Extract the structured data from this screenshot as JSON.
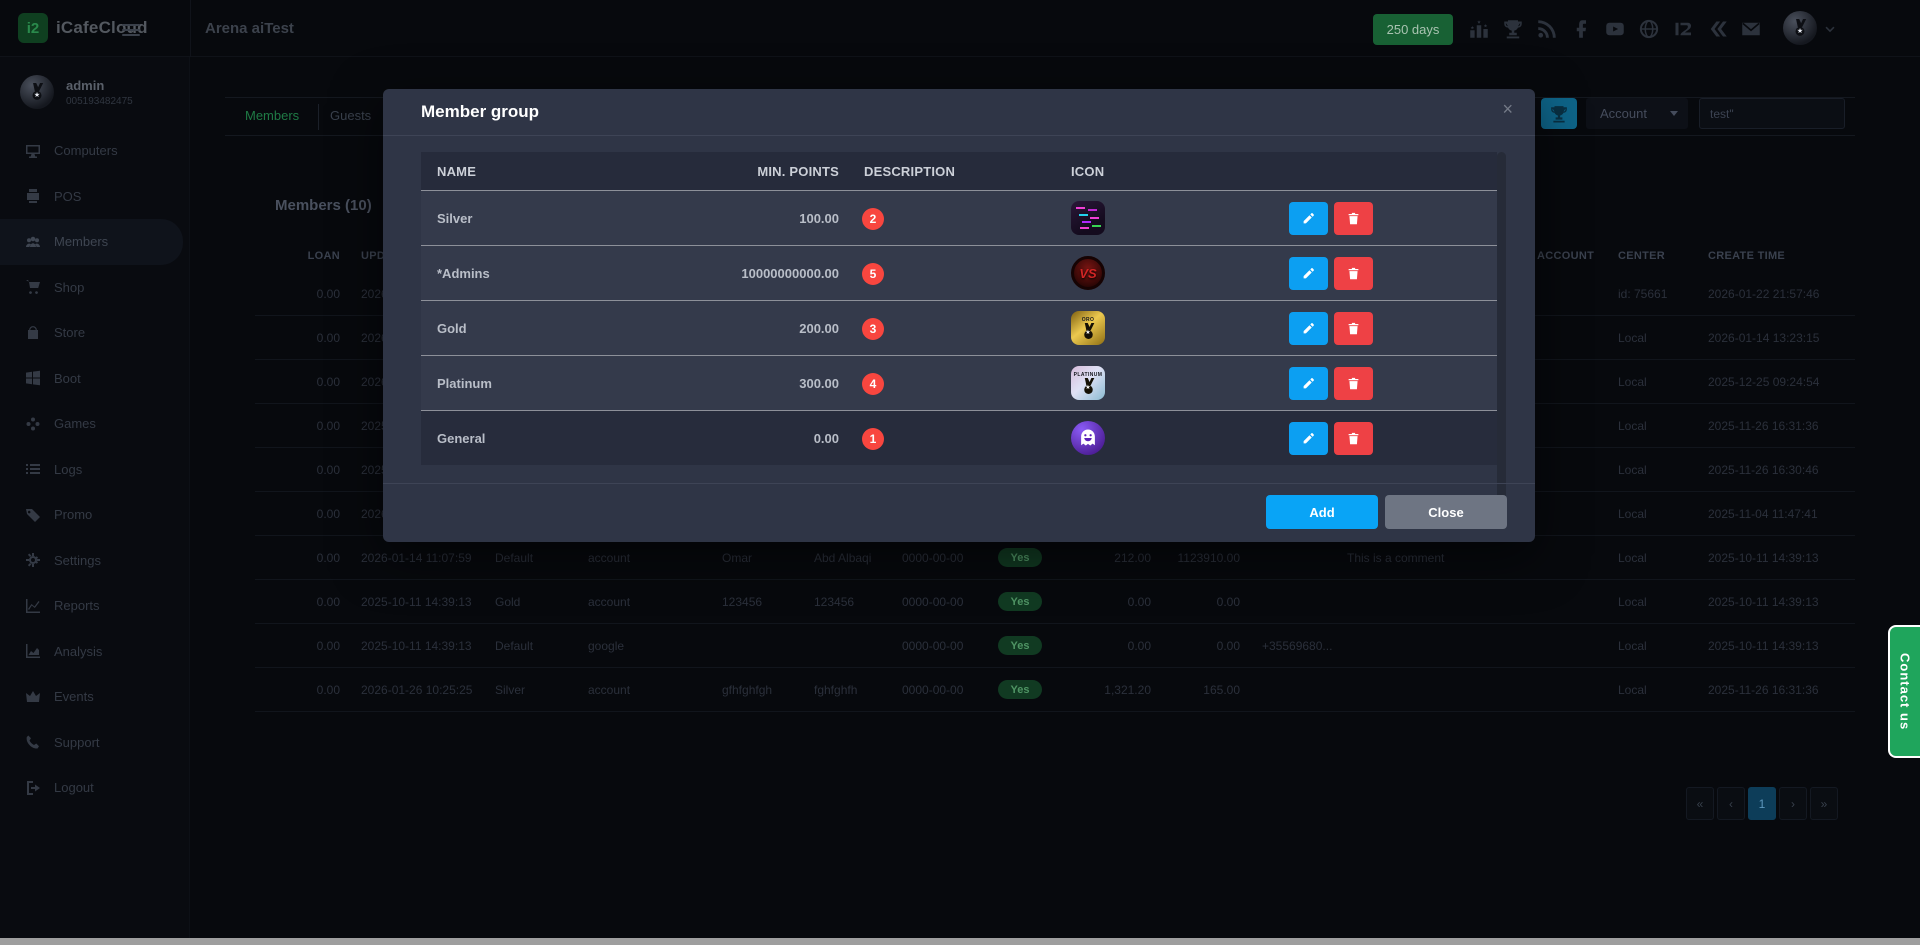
{
  "header": {
    "logo_text": "iCafeCloud",
    "logo_mark": "i2",
    "title": "Arena aiTest",
    "days_badge": "250 days",
    "icons": [
      "ranking-icon",
      "trophy-icon",
      "rss-icon",
      "facebook-icon",
      "youtube-icon",
      "globe-icon",
      "icafecloud-icon",
      "remote-icon",
      "mail-icon"
    ]
  },
  "sidebar": {
    "user": {
      "name": "admin",
      "id": "005193482475"
    },
    "items": [
      {
        "label": "Computers",
        "icon": "monitor-icon",
        "active": false
      },
      {
        "label": "POS",
        "icon": "pos-icon",
        "active": false
      },
      {
        "label": "Members",
        "icon": "members-icon",
        "active": true
      },
      {
        "label": "Shop",
        "icon": "cart-icon",
        "active": false
      },
      {
        "label": "Store",
        "icon": "bag-icon",
        "active": false
      },
      {
        "label": "Boot",
        "icon": "windows-icon",
        "active": false
      },
      {
        "label": "Games",
        "icon": "gamepad-icon",
        "active": false
      },
      {
        "label": "Logs",
        "icon": "list-icon",
        "active": false
      },
      {
        "label": "Promo",
        "icon": "tag-icon",
        "active": false
      },
      {
        "label": "Settings",
        "icon": "gear-icon",
        "active": false
      },
      {
        "label": "Reports",
        "icon": "chart-line-icon",
        "active": false
      },
      {
        "label": "Analysis",
        "icon": "chart-area-icon",
        "active": false
      },
      {
        "label": "Events",
        "icon": "crown-icon",
        "active": false
      },
      {
        "label": "Support",
        "icon": "phone-icon",
        "active": false
      },
      {
        "label": "Logout",
        "icon": "logout-icon",
        "active": false
      }
    ]
  },
  "toolbar": {
    "tabs": [
      {
        "label": "Members",
        "active": true
      },
      {
        "label": "Guests",
        "active": false
      }
    ],
    "account_select": "Account",
    "search_value": "test\""
  },
  "members": {
    "heading": "Members (10)",
    "column_labels": {
      "loan": "LOAN",
      "update": "UPDATE TIME",
      "account": "ACCOUNT",
      "center": "CENTER",
      "create": "CREATE TIME"
    },
    "yes_label": "Yes",
    "rows": [
      {
        "loan": "0.00",
        "update": "2026",
        "group": "",
        "register": "",
        "first_name": "",
        "last_name": "",
        "birthday": "",
        "active": "",
        "points": "",
        "balance": "",
        "phone": "",
        "comment": "",
        "account": "",
        "center": "id: 75661",
        "create_time": "2026-01-22 21:57:46"
      },
      {
        "loan": "0.00",
        "update": "2026",
        "group": "",
        "register": "",
        "first_name": "",
        "last_name": "",
        "birthday": "",
        "active": "",
        "points": "",
        "balance": "",
        "phone": "",
        "comment": "",
        "account": "",
        "center": "Local",
        "create_time": "2026-01-14 13:23:15"
      },
      {
        "loan": "0.00",
        "update": "2026",
        "group": "",
        "register": "",
        "first_name": "",
        "last_name": "",
        "birthday": "",
        "active": "",
        "points": "",
        "balance": "",
        "phone": "",
        "comment": "",
        "account": "",
        "center": "Local",
        "create_time": "2025-12-25 09:24:54"
      },
      {
        "loan": "0.00",
        "update": "2025",
        "group": "",
        "register": "",
        "first_name": "",
        "last_name": "",
        "birthday": "",
        "active": "",
        "points": "",
        "balance": "",
        "phone": "",
        "comment": "",
        "account": "",
        "center": "Local",
        "create_time": "2025-11-26 16:31:36"
      },
      {
        "loan": "0.00",
        "update": "2025",
        "group": "",
        "register": "",
        "first_name": "",
        "last_name": "",
        "birthday": "",
        "active": "",
        "points": "",
        "balance": "",
        "phone": "",
        "comment": "",
        "account": "",
        "center": "Local",
        "create_time": "2025-11-26 16:30:46"
      },
      {
        "loan": "0.00",
        "update": "2026",
        "group": "",
        "register": "",
        "first_name": "",
        "last_name": "",
        "birthday": "",
        "active": "",
        "points": "",
        "balance": "",
        "phone": "",
        "comment": "",
        "account": "",
        "center": "Local",
        "create_time": "2025-11-04 11:47:41"
      },
      {
        "loan": "0.00",
        "update": "2026-01-14 11:07:59",
        "group": "Default",
        "register": "account",
        "first_name": "Omar",
        "last_name": "Abd Albaqi",
        "birthday": "0000-00-00",
        "active": "Yes",
        "points": "212.00",
        "balance": "1123910.00",
        "phone": "",
        "comment": "This is a comment",
        "account": "",
        "center": "Local",
        "create_time": "2025-10-11 14:39:13"
      },
      {
        "loan": "0.00",
        "update": "2025-10-11 14:39:13",
        "group": "Gold",
        "register": "account",
        "first_name": "123456",
        "last_name": "123456",
        "birthday": "0000-00-00",
        "active": "Yes",
        "points": "0.00",
        "balance": "0.00",
        "phone": "",
        "comment": "",
        "account": "",
        "center": "Local",
        "create_time": "2025-10-11 14:39:13"
      },
      {
        "loan": "0.00",
        "update": "2025-10-11 14:39:13",
        "group": "Default",
        "register": "google",
        "first_name": "",
        "last_name": "",
        "birthday": "0000-00-00",
        "active": "Yes",
        "points": "0.00",
        "balance": "0.00",
        "phone": "+35569680...",
        "comment": "",
        "account": "",
        "center": "Local",
        "create_time": "2025-10-11 14:39:13"
      },
      {
        "loan": "0.00",
        "update": "2026-01-26 10:25:25",
        "group": "Silver",
        "register": "account",
        "first_name": "gfhfghfgh",
        "last_name": "fghfghfh",
        "birthday": "0000-00-00",
        "active": "Yes",
        "points": "1,321.20",
        "balance": "165.00",
        "phone": "",
        "comment": "",
        "account": "",
        "center": "Local",
        "create_time": "2025-11-26 16:31:36"
      }
    ],
    "pagination": {
      "items": [
        "«",
        "‹",
        "1",
        "›",
        "»"
      ],
      "active_index": 2
    }
  },
  "modal": {
    "title": "Member group",
    "close_x": "×",
    "columns": [
      "NAME",
      "MIN. POINTS",
      "DESCRIPTION",
      "ICON"
    ],
    "rows": [
      {
        "name": "Silver",
        "min_points": "100.00",
        "description_count": "2",
        "icon": "neon",
        "icon_text": ""
      },
      {
        "name": "*Admins",
        "min_points": "10000000000.00",
        "description_count": "5",
        "icon": "vs",
        "icon_text": "VS"
      },
      {
        "name": "Gold",
        "min_points": "200.00",
        "description_count": "3",
        "icon": "gold-medal",
        "icon_text": "ORO"
      },
      {
        "name": "Platinum",
        "min_points": "300.00",
        "description_count": "4",
        "icon": "platinum-medal",
        "icon_text": "PLATINUM"
      },
      {
        "name": "General",
        "min_points": "0.00",
        "description_count": "1",
        "icon": "ghost",
        "icon_text": ""
      }
    ],
    "add_label": "Add",
    "close_label": "Close"
  },
  "contact_label": "Contact us",
  "colors": {
    "accent_green": "#1fa55c",
    "accent_blue": "#09a4f6",
    "danger_red": "#ee4145",
    "badge_red": "#f8463f",
    "days_green": "#186134",
    "pager_active": "#0d3d59",
    "modal_bg": "#2f3546"
  }
}
